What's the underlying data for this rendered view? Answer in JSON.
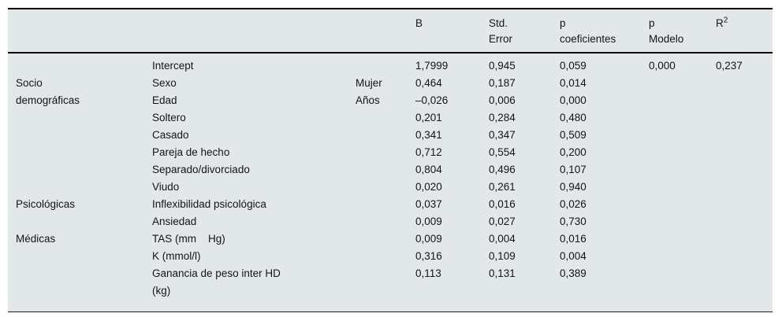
{
  "table": {
    "header": {
      "group": "",
      "variable": "",
      "category": "",
      "b": "B",
      "std_error": "Std.\nError",
      "p_coef": "p\ncoeficientes",
      "p_modelo": "p\nModelo",
      "r2_base": "R",
      "r2_sup": "2"
    },
    "rows": [
      {
        "variable": "Intercept",
        "b": "1,7999",
        "std_error": "0,945",
        "p_coef": "0,059",
        "p_modelo": "0,000",
        "r2": "0,237"
      },
      {
        "group": "Socio\ndemográficas",
        "variable": "Sexo",
        "category": "Mujer",
        "b": "0,464",
        "std_error": "0,187",
        "p_coef": "0,014"
      },
      {
        "variable": "Edad",
        "category": "Años",
        "b": "–0,026",
        "std_error": "0,006",
        "p_coef": "0,000"
      },
      {
        "variable": "Soltero",
        "b": "0,201",
        "std_error": "0,284",
        "p_coef": "0,480"
      },
      {
        "variable": "Casado",
        "b": "0,341",
        "std_error": "0,347",
        "p_coef": "0,509"
      },
      {
        "variable": "Pareja de hecho",
        "b": "0,712",
        "std_error": "0,554",
        "p_coef": "0,200"
      },
      {
        "variable": "Separado/divorciado",
        "b": "0,804",
        "std_error": "0,496",
        "p_coef": "0,107"
      },
      {
        "variable": "Viudo",
        "b": "0,020",
        "std_error": "0,261",
        "p_coef": "0,940"
      },
      {
        "group": "Psicológicas",
        "variable": "Inflexibilidad psicológica",
        "b": "0,037",
        "std_error": "0,016",
        "p_coef": "0,026"
      },
      {
        "variable": "Ansiedad",
        "b": "0,009",
        "std_error": "0,027",
        "p_coef": "0,730"
      },
      {
        "group": "Médicas",
        "variable": "TAS (mm    Hg)",
        "b": "0,009",
        "std_error": "0,004",
        "p_coef": "0,016"
      },
      {
        "variable": "K (mmol/l)",
        "b": "0,316",
        "std_error": "0,109",
        "p_coef": "0,004"
      },
      {
        "variable": "Ganancia de peso inter HD\n(kg)",
        "b": "0,113",
        "std_error": "0,131",
        "p_coef": "0,389"
      }
    ]
  }
}
